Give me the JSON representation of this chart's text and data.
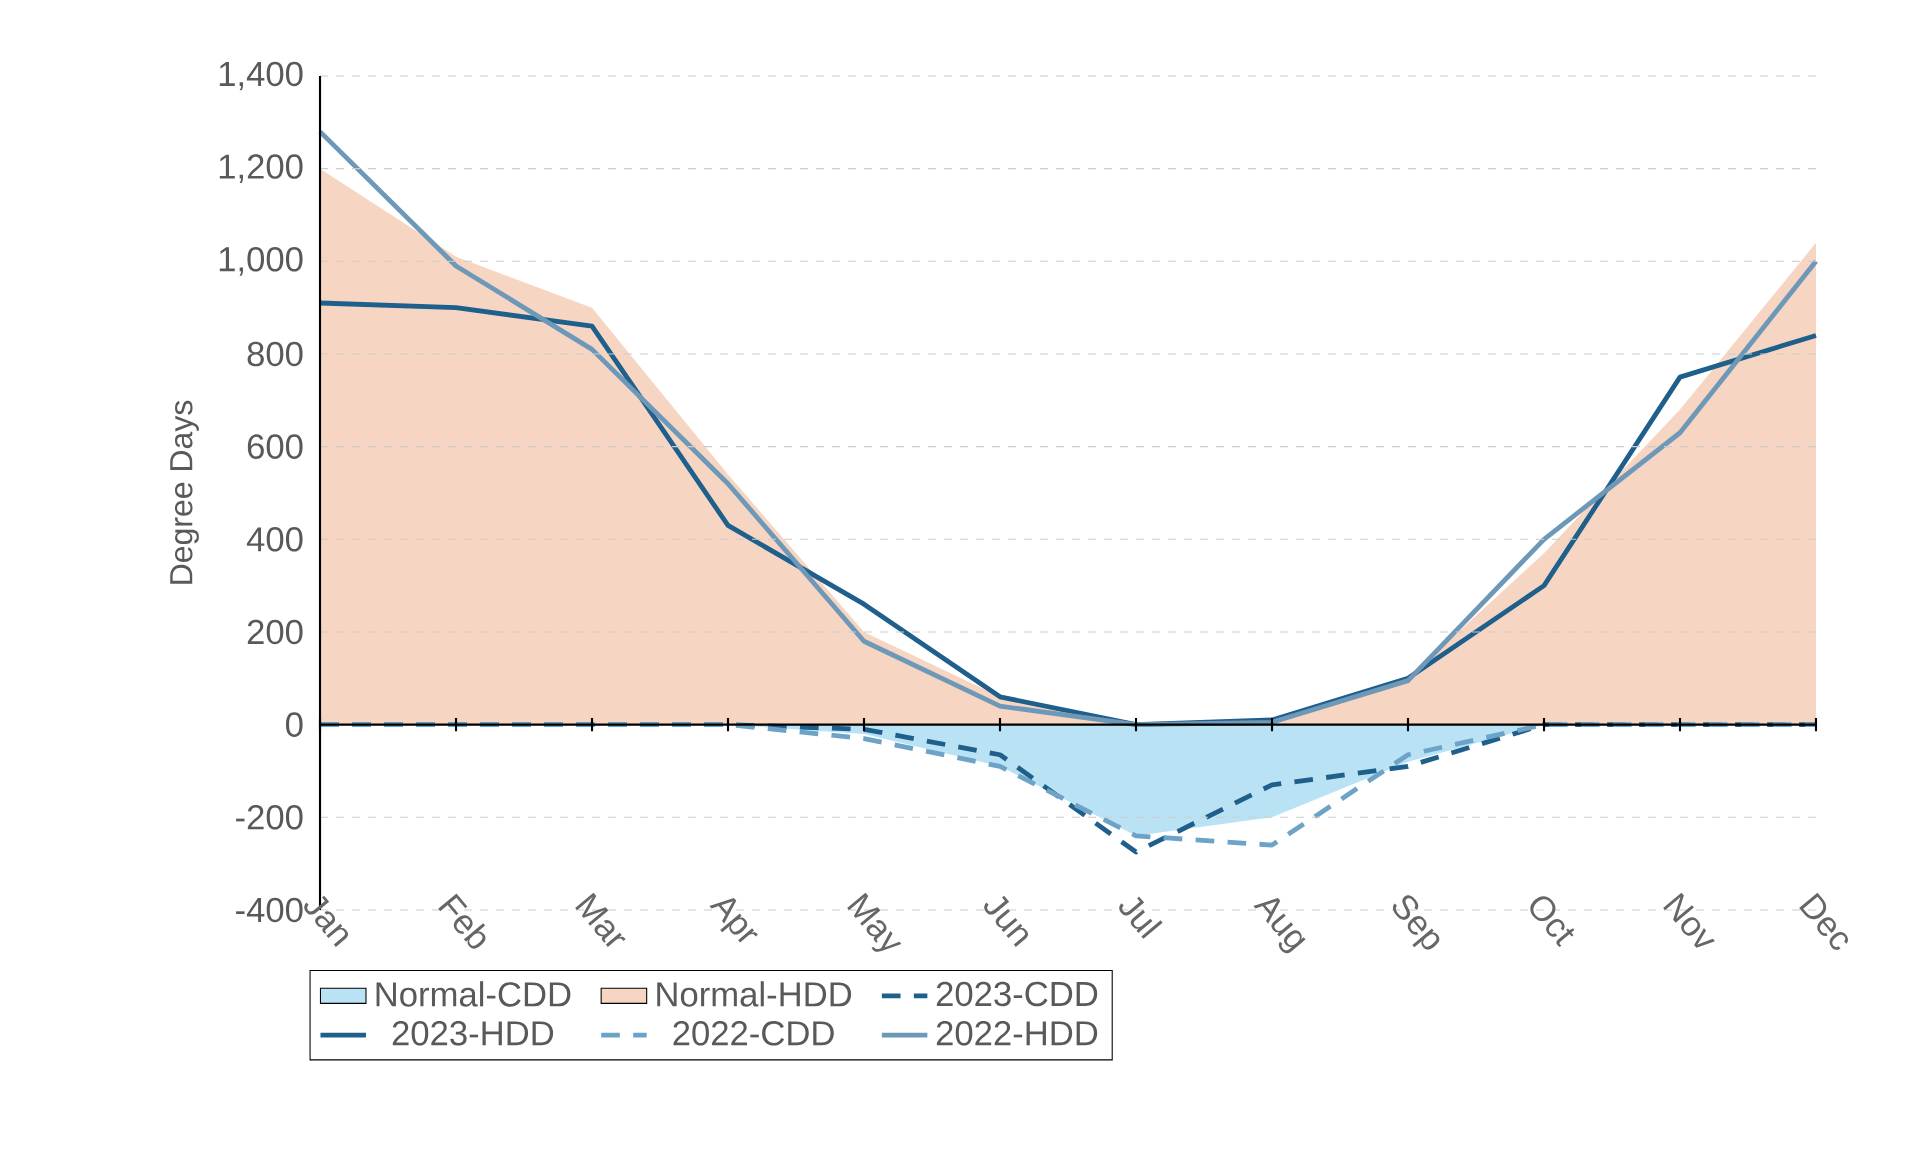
{
  "chart_data": {
    "type": "line",
    "ylabel": "Degree Days",
    "categories": [
      "Jan",
      "Feb",
      "Mar",
      "Apr",
      "May",
      "Jun",
      "Jul",
      "Aug",
      "Sep",
      "Oct",
      "Nov",
      "Dec"
    ],
    "series": [
      {
        "name": "Normal-CDD",
        "type": "area",
        "color": "#b9e3f5",
        "values": [
          0,
          0,
          0,
          0,
          -20,
          -90,
          -240,
          -200,
          -80,
          0,
          0,
          0
        ]
      },
      {
        "name": "Normal-HDD",
        "type": "area",
        "color": "#f6d5c3",
        "values": [
          1200,
          1010,
          900,
          540,
          200,
          60,
          0,
          10,
          100,
          370,
          680,
          1040
        ]
      },
      {
        "name": "2023-CDD",
        "line_style": "dashed",
        "color": "#1f5f8b",
        "values": [
          0,
          0,
          0,
          0,
          -10,
          -65,
          -275,
          -130,
          -90,
          0,
          0,
          0
        ]
      },
      {
        "name": "2023-HDD",
        "line_style": "solid",
        "color": "#1f5f8b",
        "values": [
          910,
          900,
          860,
          430,
          260,
          60,
          0,
          10,
          100,
          300,
          750,
          840
        ]
      },
      {
        "name": "2022-CDD",
        "line_style": "dashed",
        "color": "#6ea3c8",
        "values": [
          0,
          0,
          0,
          0,
          -30,
          -90,
          -240,
          -260,
          -65,
          0,
          0,
          0
        ]
      },
      {
        "name": "2022-HDD",
        "line_style": "solid",
        "color": "#6d98b8",
        "values": [
          1280,
          990,
          810,
          520,
          180,
          40,
          0,
          5,
          95,
          400,
          630,
          1000
        ]
      }
    ],
    "ylim": [
      -400,
      1400
    ],
    "yticks": [
      -400,
      -200,
      0,
      200,
      400,
      600,
      800,
      {
        "value": 1000,
        "label": "1,000"
      },
      {
        "value": 1200,
        "label": "1,200"
      },
      {
        "value": 1400,
        "label": "1,400"
      }
    ],
    "grid": "y",
    "legend": "bottom"
  }
}
